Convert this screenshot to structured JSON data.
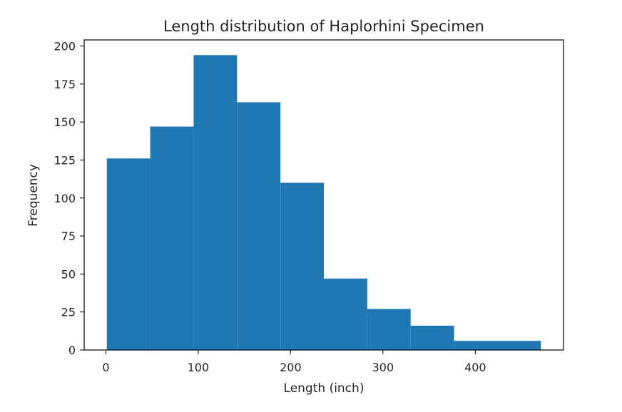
{
  "chart_data": {
    "type": "bar",
    "title": "Length distribution of Haplorhini Specimen",
    "xlabel": "Length (inch)",
    "ylabel": "Frequency",
    "bins": [
      {
        "start": 1,
        "end": 48,
        "value": 126
      },
      {
        "start": 48,
        "end": 95,
        "value": 147
      },
      {
        "start": 95,
        "end": 142,
        "value": 194
      },
      {
        "start": 142,
        "end": 189,
        "value": 163
      },
      {
        "start": 189,
        "end": 236,
        "value": 110
      },
      {
        "start": 236,
        "end": 283,
        "value": 47
      },
      {
        "start": 283,
        "end": 330,
        "value": 27
      },
      {
        "start": 330,
        "end": 377,
        "value": 16
      },
      {
        "start": 377,
        "end": 471,
        "value": 6
      }
    ],
    "bar_color": "#1f77b4",
    "xlim": [
      -23.5,
      495.5
    ],
    "ylim": [
      0,
      204
    ],
    "xticks": [
      0,
      100,
      200,
      300,
      400
    ],
    "yticks": [
      0,
      25,
      50,
      75,
      100,
      125,
      150,
      175,
      200
    ],
    "grid": false
  }
}
